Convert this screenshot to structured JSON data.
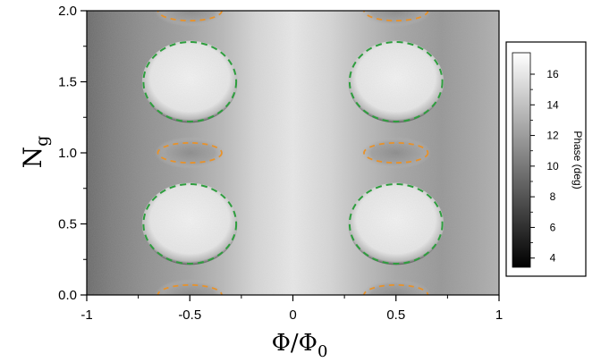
{
  "chart_data": {
    "type": "heatmap",
    "xlabel": "Φ/Φ",
    "xlabel_sub": "0",
    "ylabel": "N",
    "ylabel_sub": "g",
    "xlim": [
      -1,
      1
    ],
    "ylim": [
      0,
      2
    ],
    "x_ticks": [
      -1,
      -0.5,
      0,
      0.5,
      1
    ],
    "x_tick_labels": [
      "-1",
      "-0.5",
      "0",
      "0.5",
      "1"
    ],
    "y_ticks": [
      0,
      0.5,
      1,
      1.5,
      2
    ],
    "y_tick_labels": [
      "0.0",
      "0.5",
      "1.0",
      "1.5",
      "2.0"
    ],
    "colormap": "grayscale",
    "colorbar": {
      "label": "Phase (deg)",
      "range": [
        3.4,
        17.4
      ],
      "ticks": [
        4,
        6,
        8,
        10,
        12,
        14,
        16
      ],
      "tick_labels": [
        "4",
        "6",
        "8",
        "10",
        "12",
        "14",
        "16"
      ],
      "low_color": "#000000",
      "high_color": "#ffffff"
    },
    "overlays": [
      {
        "shape": "ellipse",
        "color": "#2e9e3e",
        "style": "dashed",
        "cx": -0.5,
        "cy": 0.5,
        "rx": 0.225,
        "ry": 0.28
      },
      {
        "shape": "ellipse",
        "color": "#2e9e3e",
        "style": "dashed",
        "cx": 0.5,
        "cy": 0.5,
        "rx": 0.225,
        "ry": 0.28
      },
      {
        "shape": "ellipse",
        "color": "#2e9e3e",
        "style": "dashed",
        "cx": -0.5,
        "cy": 1.5,
        "rx": 0.225,
        "ry": 0.28
      },
      {
        "shape": "ellipse",
        "color": "#2e9e3e",
        "style": "dashed",
        "cx": 0.5,
        "cy": 1.5,
        "rx": 0.225,
        "ry": 0.28
      },
      {
        "shape": "ellipse",
        "color": "#e8922a",
        "style": "dashed",
        "cx": -0.5,
        "cy": 1.0,
        "rx": 0.155,
        "ry": 0.07
      },
      {
        "shape": "ellipse",
        "color": "#e8922a",
        "style": "dashed",
        "cx": 0.5,
        "cy": 1.0,
        "rx": 0.155,
        "ry": 0.07
      },
      {
        "shape": "ellipse",
        "color": "#e8922a",
        "style": "dashed",
        "cx": -0.5,
        "cy": 0.0,
        "rx": 0.155,
        "ry": 0.07
      },
      {
        "shape": "ellipse",
        "color": "#e8922a",
        "style": "dashed",
        "cx": 0.5,
        "cy": 0.0,
        "rx": 0.155,
        "ry": 0.07
      },
      {
        "shape": "ellipse",
        "color": "#e8922a",
        "style": "dashed",
        "cx": -0.5,
        "cy": 2.0,
        "rx": 0.155,
        "ry": 0.07
      },
      {
        "shape": "ellipse",
        "color": "#e8922a",
        "style": "dashed",
        "cx": 0.5,
        "cy": 2.0,
        "rx": 0.155,
        "ry": 0.07
      }
    ],
    "grid": false
  }
}
